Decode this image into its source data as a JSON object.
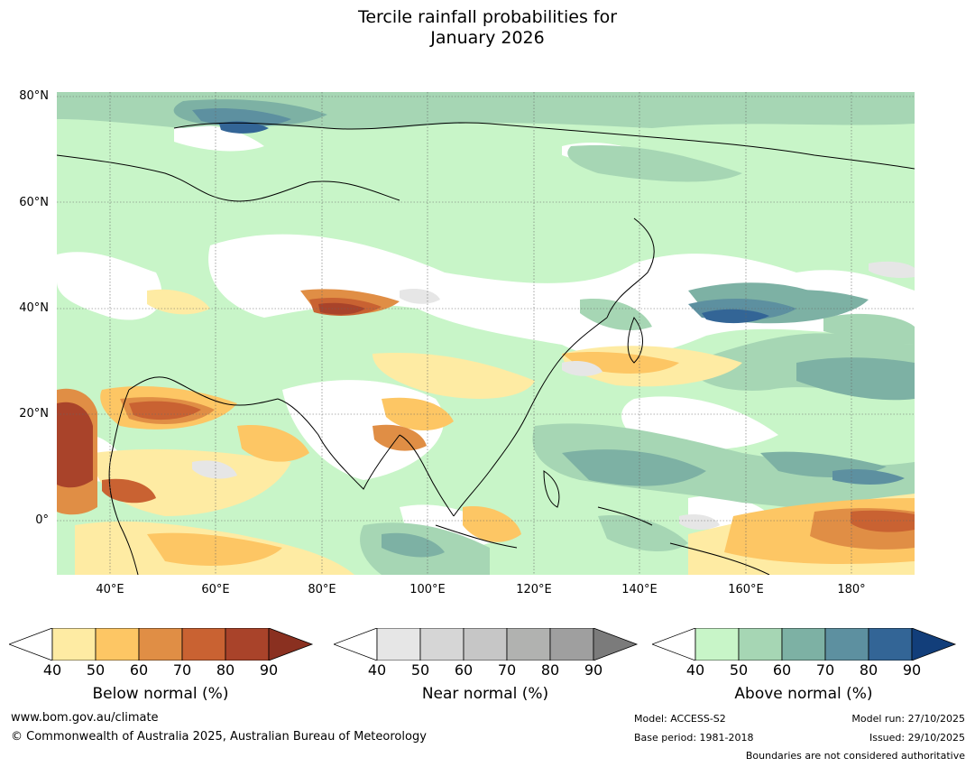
{
  "title": {
    "line1": "Tercile rainfall probabilities for",
    "line2": "January 2026"
  },
  "map": {
    "latitudes": [
      "80°N",
      "60°N",
      "40°N",
      "20°N",
      "0°"
    ],
    "longitudes": [
      "40°E",
      "60°E",
      "80°E",
      "100°E",
      "120°E",
      "140°E",
      "160°E",
      "180°"
    ],
    "lon_range": [
      30,
      192
    ],
    "lat_range": [
      -10,
      81
    ]
  },
  "legend": {
    "below": {
      "title": "Below normal (%)",
      "ticks": [
        "40",
        "50",
        "60",
        "70",
        "80",
        "90"
      ],
      "colors": [
        "#ffffff",
        "#feeba3",
        "#fdc664",
        "#e08e45",
        "#c96232",
        "#a9432a",
        "#8a3020"
      ]
    },
    "near": {
      "title": "Near normal (%)",
      "ticks": [
        "40",
        "50",
        "60",
        "70",
        "80",
        "90"
      ],
      "colors": [
        "#ffffff",
        "#e6e6e6",
        "#d6d6d6",
        "#c6c6c6",
        "#b1b2b0",
        "#9f9f9f",
        "#7b7b7b"
      ]
    },
    "above": {
      "title": "Above normal (%)",
      "ticks": [
        "40",
        "50",
        "60",
        "70",
        "80",
        "90"
      ],
      "colors": [
        "#ffffff",
        "#c8f5c8",
        "#a6d6b4",
        "#7db1a4",
        "#5d90a0",
        "#336596",
        "#123e7a"
      ]
    }
  },
  "footer": {
    "url": "www.bom.gov.au/climate",
    "copyright": "© Commonwealth of Australia 2025, Australian Bureau of Meteorology",
    "model": "Model: ACCESS-S2",
    "base_period": "Base period: 1981-2018",
    "model_run": "Model run: 27/10/2025",
    "issued": "Issued: 29/10/2025",
    "boundaries": "Boundaries are not considered authoritative"
  }
}
